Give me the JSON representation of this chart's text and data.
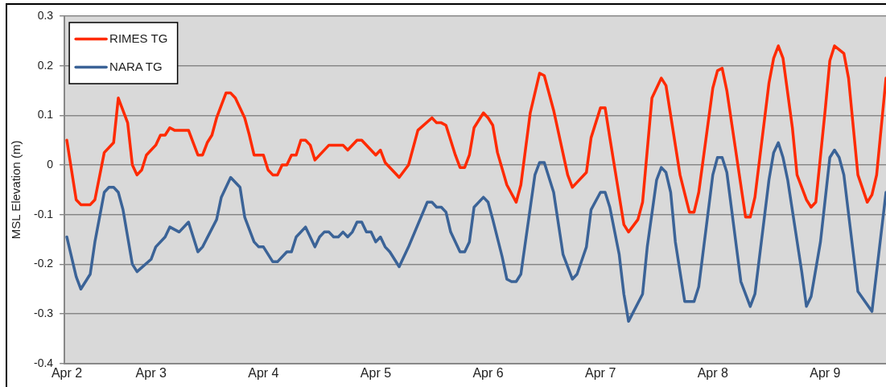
{
  "chart_data": {
    "type": "line",
    "ylabel": "MSL Elevation (m)",
    "xlim": [
      "--04-02T05:30",
      "--04-09T13:00"
    ],
    "xticks": [
      {
        "value": "--04-02T06:00",
        "label": "Apr 2"
      },
      {
        "value": "--04-03T00:00",
        "label": "Apr 3"
      },
      {
        "value": "--04-04T00:00",
        "label": "Apr 4"
      },
      {
        "value": "--04-05T00:00",
        "label": "Apr 5"
      },
      {
        "value": "--04-06T00:00",
        "label": "Apr 6"
      },
      {
        "value": "--04-07T00:00",
        "label": "Apr 7"
      },
      {
        "value": "--04-08T00:00",
        "label": "Apr 8"
      },
      {
        "value": "--04-09T00:00",
        "label": "Apr 9"
      }
    ],
    "ylim": [
      -0.4,
      0.3
    ],
    "yticks": [
      -0.4,
      -0.3,
      -0.2,
      -0.1,
      0,
      0.1,
      0.2,
      0.3
    ],
    "grid": "y",
    "legend": "top left",
    "marker": "none",
    "line_style": "solid",
    "series": [
      {
        "name": "RIMES TG",
        "color": "#ff2a00",
        "x": [
          "--04-02T06:00",
          "--04-02T08:00",
          "--04-02T09:00",
          "--04-02T11:00",
          "--04-02T12:00",
          "--04-02T14:00",
          "--04-02T16:00",
          "--04-02T17:00",
          "--04-02T19:00",
          "--04-02T20:00",
          "--04-02T21:00",
          "--04-02T22:00",
          "--04-02T23:00",
          "--04-03T01:00",
          "--04-03T02:00",
          "--04-03T03:00",
          "--04-03T04:00",
          "--04-03T05:00",
          "--04-03T08:00",
          "--04-03T09:00",
          "--04-03T10:00",
          "--04-03T11:00",
          "--04-03T12:00",
          "--04-03T13:00",
          "--04-03T14:00",
          "--04-03T16:00",
          "--04-03T17:00",
          "--04-03T18:00",
          "--04-03T20:00",
          "--04-03T21:00",
          "--04-03T22:00",
          "--04-04T00:00",
          "--04-04T01:00",
          "--04-04T02:00",
          "--04-04T03:00",
          "--04-04T04:00",
          "--04-04T05:00",
          "--04-04T06:00",
          "--04-04T07:00",
          "--04-04T08:00",
          "--04-04T09:00",
          "--04-04T10:00",
          "--04-04T11:00",
          "--04-04T14:00",
          "--04-04T17:00",
          "--04-04T18:00",
          "--04-04T20:00",
          "--04-04T21:00",
          "--04-05T00:00",
          "--04-05T01:00",
          "--04-05T02:00",
          "--04-05T05:00",
          "--04-05T07:00",
          "--04-05T09:00",
          "--04-05T12:00",
          "--04-05T13:00",
          "--04-05T14:00",
          "--04-05T15:00",
          "--04-05T17:00",
          "--04-05T18:00",
          "--04-05T19:00",
          "--04-05T20:00",
          "--04-05T21:00",
          "--04-05T23:00",
          "--04-06T00:00",
          "--04-06T01:00",
          "--04-06T02:00",
          "--04-06T04:00",
          "--04-06T06:00",
          "--04-06T07:00",
          "--04-06T09:00",
          "--04-06T11:00",
          "--04-06T12:00",
          "--04-06T14:00",
          "--04-06T17:00",
          "--04-06T18:00",
          "--04-06T19:00",
          "--04-06T21:00",
          "--04-06T22:00",
          "--04-07T00:00",
          "--04-07T01:00",
          "--04-07T02:00",
          "--04-07T05:00",
          "--04-07T06:00",
          "--04-07T08:00",
          "--04-07T09:00",
          "--04-07T11:00",
          "--04-07T13:00",
          "--04-07T14:00",
          "--04-07T17:00",
          "--04-07T19:00",
          "--04-07T20:00",
          "--04-07T21:00",
          "--04-08T00:00",
          "--04-08T01:00",
          "--04-08T02:00",
          "--04-08T03:00",
          "--04-08T07:00",
          "--04-08T08:00",
          "--04-08T09:00",
          "--04-08T12:00",
          "--04-08T13:00",
          "--04-08T14:00",
          "--04-08T15:00",
          "--04-08T17:00",
          "--04-08T18:00",
          "--04-08T20:00",
          "--04-08T21:00",
          "--04-08T22:00",
          "--04-09T00:00",
          "--04-09T01:00",
          "--04-09T02:00",
          "--04-09T04:00",
          "--04-09T05:00",
          "--04-09T07:00",
          "--04-09T09:00",
          "--04-09T10:00",
          "--04-09T11:00",
          "--04-09T13:00"
        ],
        "values": [
          0.05,
          -0.07,
          -0.08,
          -0.08,
          -0.07,
          0.025,
          0.045,
          0.135,
          0.085,
          0.0,
          -0.02,
          -0.01,
          0.02,
          0.04,
          0.06,
          0.06,
          0.075,
          0.07,
          0.07,
          0.045,
          0.02,
          0.02,
          0.045,
          0.06,
          0.095,
          0.145,
          0.145,
          0.135,
          0.095,
          0.06,
          0.02,
          0.02,
          -0.01,
          -0.02,
          -0.02,
          0.0,
          0.0,
          0.02,
          0.02,
          0.05,
          0.05,
          0.04,
          0.01,
          0.04,
          0.04,
          0.03,
          0.05,
          0.05,
          0.02,
          0.03,
          0.005,
          -0.025,
          0.0,
          0.07,
          0.095,
          0.085,
          0.085,
          0.08,
          0.02,
          -0.005,
          -0.005,
          0.02,
          0.075,
          0.105,
          0.095,
          0.08,
          0.025,
          -0.04,
          -0.075,
          -0.04,
          0.105,
          0.185,
          0.18,
          0.11,
          -0.02,
          -0.045,
          -0.035,
          -0.015,
          0.055,
          0.115,
          0.115,
          0.055,
          -0.12,
          -0.135,
          -0.11,
          -0.075,
          0.135,
          0.175,
          0.16,
          -0.02,
          -0.095,
          -0.095,
          -0.055,
          0.155,
          0.19,
          0.195,
          0.15,
          -0.105,
          -0.105,
          -0.065,
          0.165,
          0.215,
          0.24,
          0.215,
          0.075,
          -0.02,
          -0.07,
          -0.085,
          -0.075,
          0.11,
          0.21,
          0.24,
          0.225,
          0.175,
          -0.02,
          -0.075,
          -0.06,
          -0.02,
          0.175
        ]
      },
      {
        "name": "NARA TG",
        "color": "#3b6397",
        "x": [
          "--04-02T06:00",
          "--04-02T08:00",
          "--04-02T09:00",
          "--04-02T11:00",
          "--04-02T12:00",
          "--04-02T14:00",
          "--04-02T15:00",
          "--04-02T16:00",
          "--04-02T17:00",
          "--04-02T18:00",
          "--04-02T20:00",
          "--04-02T21:00",
          "--04-03T00:00",
          "--04-03T01:00",
          "--04-03T03:00",
          "--04-03T04:00",
          "--04-03T06:00",
          "--04-03T08:00",
          "--04-03T10:00",
          "--04-03T11:00",
          "--04-03T14:00",
          "--04-03T15:00",
          "--04-03T17:00",
          "--04-03T19:00",
          "--04-03T20:00",
          "--04-03T22:00",
          "--04-03T23:00",
          "--04-04T00:00",
          "--04-04T01:00",
          "--04-04T02:00",
          "--04-04T03:00",
          "--04-04T05:00",
          "--04-04T06:00",
          "--04-04T07:00",
          "--04-04T09:00",
          "--04-04T11:00",
          "--04-04T12:00",
          "--04-04T13:00",
          "--04-04T14:00",
          "--04-04T15:00",
          "--04-04T16:00",
          "--04-04T17:00",
          "--04-04T18:00",
          "--04-04T19:00",
          "--04-04T20:00",
          "--04-04T21:00",
          "--04-04T22:00",
          "--04-04T23:00",
          "--04-05T00:00",
          "--04-05T01:00",
          "--04-05T02:00",
          "--04-05T03:00",
          "--04-05T05:00",
          "--04-05T07:00",
          "--04-05T11:00",
          "--04-05T12:00",
          "--04-05T13:00",
          "--04-05T14:00",
          "--04-05T15:00",
          "--04-05T16:00",
          "--04-05T18:00",
          "--04-05T19:00",
          "--04-05T20:00",
          "--04-05T21:00",
          "--04-05T23:00",
          "--04-06T00:00",
          "--04-06T01:00",
          "--04-06T03:00",
          "--04-06T04:00",
          "--04-06T05:00",
          "--04-06T06:00",
          "--04-06T07:00",
          "--04-06T10:00",
          "--04-06T11:00",
          "--04-06T12:00",
          "--04-06T14:00",
          "--04-06T16:00",
          "--04-06T18:00",
          "--04-06T19:00",
          "--04-06T21:00",
          "--04-06T22:00",
          "--04-07T00:00",
          "--04-07T01:00",
          "--04-07T02:00",
          "--04-07T04:00",
          "--04-07T05:00",
          "--04-07T06:00",
          "--04-07T09:00",
          "--04-07T10:00",
          "--04-07T12:00",
          "--04-07T13:00",
          "--04-07T14:00",
          "--04-07T15:00",
          "--04-07T16:00",
          "--04-07T18:00",
          "--04-07T20:00",
          "--04-07T21:00",
          "--04-08T00:00",
          "--04-08T01:00",
          "--04-08T02:00",
          "--04-08T03:00",
          "--04-08T06:00",
          "--04-08T08:00",
          "--04-08T09:00",
          "--04-08T12:00",
          "--04-08T13:00",
          "--04-08T14:00",
          "--04-08T15:00",
          "--04-08T16:00",
          "--04-08T19:00",
          "--04-08T20:00",
          "--04-08T21:00",
          "--04-08T23:00",
          "--04-09T01:00",
          "--04-09T02:00",
          "--04-09T03:00",
          "--04-09T04:00",
          "--04-09T07:00",
          "--04-09T10:00",
          "--04-09T13:00"
        ],
        "values": [
          -0.145,
          -0.225,
          -0.25,
          -0.22,
          -0.155,
          -0.055,
          -0.045,
          -0.045,
          -0.055,
          -0.09,
          -0.2,
          -0.215,
          -0.19,
          -0.165,
          -0.145,
          -0.125,
          -0.135,
          -0.115,
          -0.175,
          -0.165,
          -0.11,
          -0.065,
          -0.025,
          -0.045,
          -0.105,
          -0.155,
          -0.165,
          -0.165,
          -0.18,
          -0.195,
          -0.195,
          -0.175,
          -0.175,
          -0.145,
          -0.125,
          -0.165,
          -0.145,
          -0.135,
          -0.135,
          -0.145,
          -0.145,
          -0.135,
          -0.145,
          -0.135,
          -0.115,
          -0.115,
          -0.135,
          -0.135,
          -0.155,
          -0.145,
          -0.165,
          -0.175,
          -0.205,
          -0.165,
          -0.075,
          -0.075,
          -0.085,
          -0.085,
          -0.095,
          -0.135,
          -0.175,
          -0.175,
          -0.155,
          -0.085,
          -0.065,
          -0.075,
          -0.11,
          -0.185,
          -0.23,
          -0.235,
          -0.235,
          -0.22,
          -0.02,
          0.005,
          0.005,
          -0.055,
          -0.18,
          -0.23,
          -0.22,
          -0.165,
          -0.09,
          -0.055,
          -0.055,
          -0.085,
          -0.18,
          -0.26,
          -0.315,
          -0.26,
          -0.165,
          -0.03,
          -0.005,
          -0.015,
          -0.055,
          -0.155,
          -0.275,
          -0.275,
          -0.245,
          -0.02,
          0.015,
          0.015,
          -0.015,
          -0.235,
          -0.285,
          -0.26,
          -0.03,
          0.025,
          0.045,
          0.015,
          -0.03,
          -0.215,
          -0.285,
          -0.265,
          -0.155,
          0.015,
          0.03,
          0.015,
          -0.02,
          -0.255,
          -0.295,
          -0.055
        ]
      }
    ]
  }
}
